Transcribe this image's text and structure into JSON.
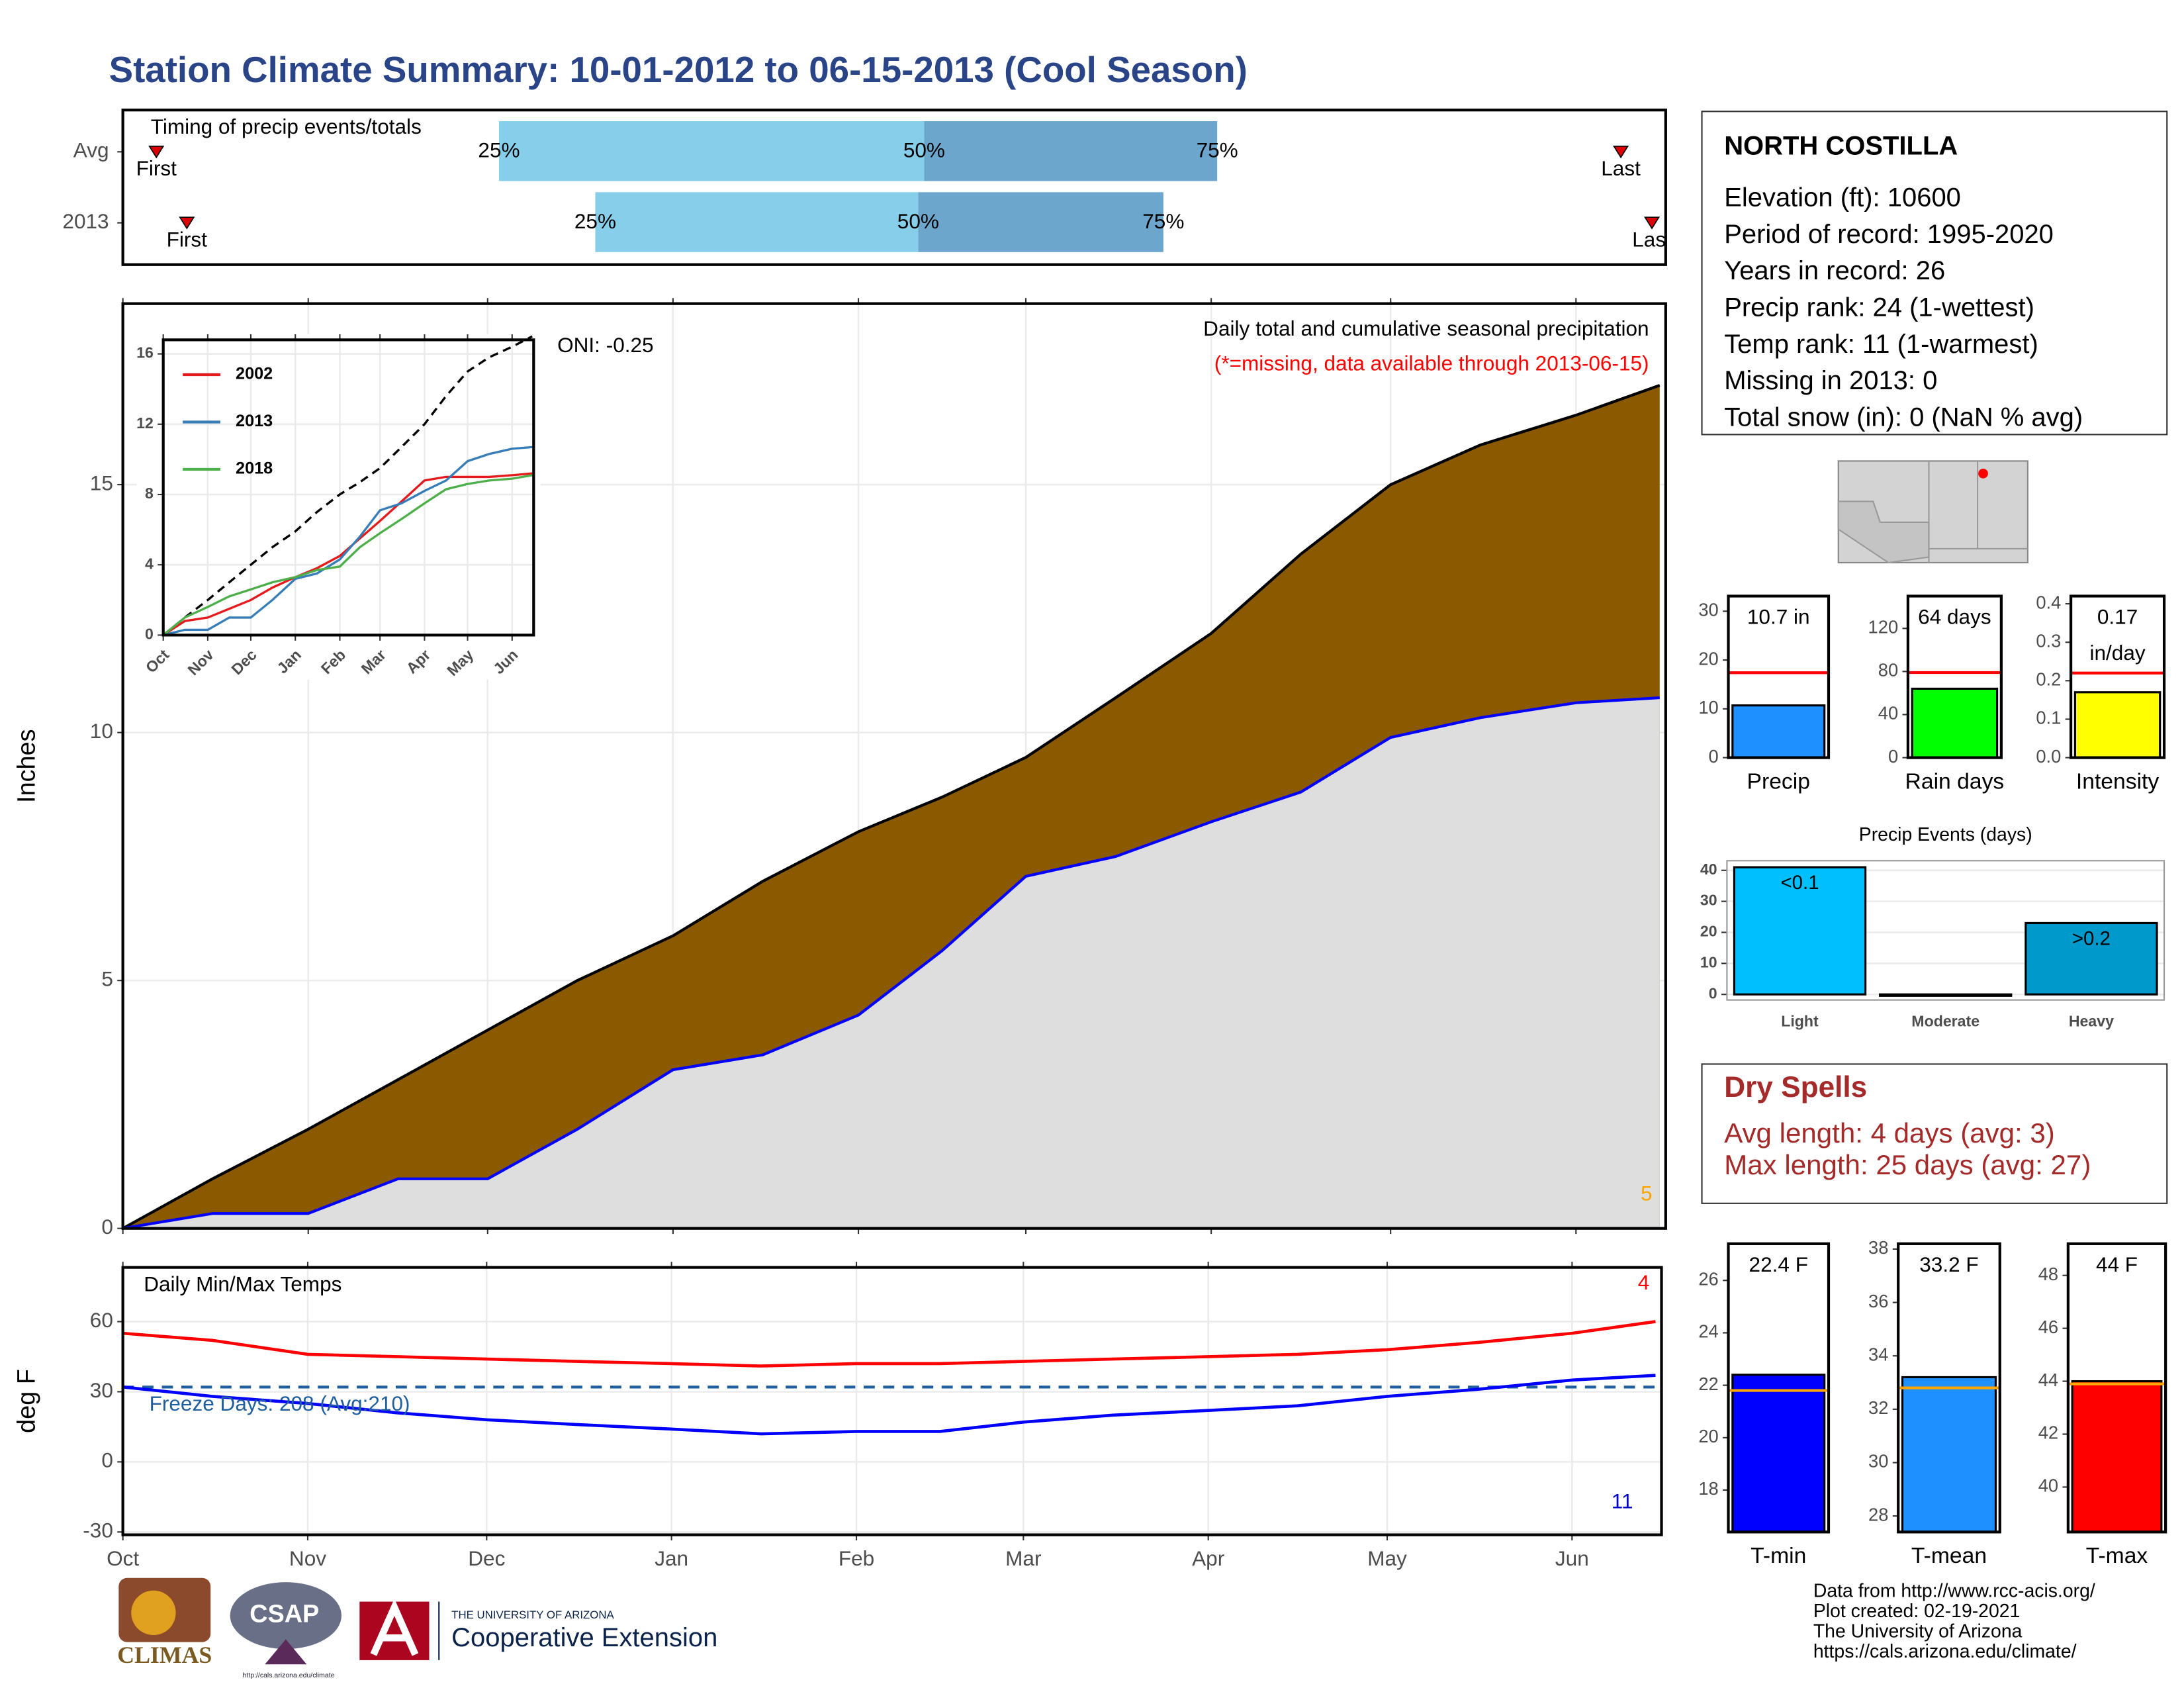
{
  "title": "Station Climate Summary: 10-01-2012 to 06-15-2013 (Cool Season)",
  "chart_data": [
    {
      "type": "timeline",
      "title": "Timing of precip events/totals",
      "categories": [
        "Avg",
        "2013"
      ],
      "xlim": [
        0,
        258
      ],
      "rows": [
        {
          "first": 5.6,
          "q25": 62.9,
          "q50": 134,
          "q75": 183,
          "last": 250.5
        },
        {
          "first": 10.7,
          "q25": 79,
          "q50": 133,
          "q75": 174,
          "last": 255.7
        }
      ],
      "labels": {
        "first": "First",
        "last": "Last",
        "q25": "25%",
        "q50": "50%",
        "q75": "75%"
      },
      "colors": {
        "early": "#87ceeb",
        "late": "#6ca6cd",
        "marker": "#dd0000"
      }
    },
    {
      "type": "area",
      "title": "Daily total and cumulative seasonal precipitation",
      "subtitle": "(*=missing, data available through 2013-06-15)",
      "y_label": "Inches",
      "annotations": [
        {
          "text": "ONI: -0.25",
          "color": "#000000"
        },
        {
          "text": "5",
          "color": "#ffa500"
        }
      ],
      "x": [
        0,
        15,
        31,
        46,
        61,
        76,
        92,
        107,
        123,
        137,
        151,
        166,
        182,
        197,
        212,
        227,
        243,
        257
      ],
      "series": [
        {
          "color": "#8b5a00",
          "edge": "#000000",
          "values": [
            0,
            1.0,
            2.0,
            3.0,
            4.0,
            5.0,
            5.9,
            7.0,
            8.0,
            8.7,
            9.5,
            10.7,
            12.0,
            13.6,
            15.0,
            15.8,
            16.4,
            17.0
          ]
        },
        {
          "color": "#dedede",
          "edge": "#0000ff",
          "values": [
            0,
            0.3,
            0.3,
            1.0,
            1.0,
            2.0,
            3.2,
            3.5,
            4.3,
            5.6,
            7.1,
            7.5,
            8.2,
            8.8,
            9.9,
            10.3,
            10.6,
            10.7
          ]
        }
      ],
      "xlim": [
        0,
        258
      ],
      "xticks": [
        0,
        31,
        61,
        92,
        123,
        151,
        182,
        212,
        243
      ],
      "ylim": [
        0,
        18.65
      ],
      "yticks": [
        0,
        5,
        10,
        15
      ],
      "grid": true
    },
    {
      "type": "line",
      "x": [
        0,
        15,
        31,
        46,
        61,
        76,
        92,
        107,
        123,
        137,
        151,
        166,
        182,
        197,
        212,
        227,
        243,
        257
      ],
      "series": [
        {
          "color": "#000000",
          "dash": true,
          "values": [
            0,
            1.0,
            2.0,
            3.0,
            4.0,
            5.0,
            5.9,
            7.0,
            8.0,
            8.7,
            9.5,
            10.7,
            12.0,
            13.6,
            15.0,
            15.8,
            16.4,
            17.0
          ]
        },
        {
          "name": "2002",
          "color": "#e41a1c",
          "values": [
            0,
            0.8,
            1.0,
            1.5,
            2.0,
            2.7,
            3.3,
            3.8,
            4.5,
            5.5,
            6.5,
            7.6,
            8.8,
            9.0,
            9.0,
            9.0,
            9.1,
            9.2
          ]
        },
        {
          "name": "2013",
          "color": "#377eb8",
          "values": [
            0,
            0.3,
            0.3,
            1.0,
            1.0,
            2.0,
            3.2,
            3.5,
            4.3,
            5.6,
            7.1,
            7.5,
            8.2,
            8.8,
            9.9,
            10.3,
            10.6,
            10.7
          ]
        },
        {
          "name": "2018",
          "color": "#4daf4a",
          "values": [
            0,
            1.0,
            1.6,
            2.2,
            2.6,
            3.0,
            3.3,
            3.7,
            3.9,
            5.0,
            5.8,
            6.6,
            7.5,
            8.3,
            8.6,
            8.8,
            8.9,
            9.1
          ]
        }
      ],
      "xlim": [
        0,
        258
      ],
      "xticks": [
        {
          "value": 0,
          "label": "Oct"
        },
        {
          "value": 31,
          "label": "Nov"
        },
        {
          "value": 61,
          "label": "Dec"
        },
        {
          "value": 92,
          "label": "Jan"
        },
        {
          "value": 123,
          "label": "Feb"
        },
        {
          "value": 151,
          "label": "Mar"
        },
        {
          "value": 182,
          "label": "Apr"
        },
        {
          "value": 212,
          "label": "May"
        },
        {
          "value": 243,
          "label": "Jun"
        }
      ],
      "ylim": [
        0,
        16.8
      ],
      "yticks": [
        0,
        4,
        8,
        12,
        16
      ],
      "grid": true
    },
    {
      "type": "temps",
      "title": "Daily Min/Max Temps",
      "y_label": "deg F",
      "annotations": [
        {
          "text": "Freeze Days: 208 (Avg:210)",
          "color": "#1f5f9f"
        },
        {
          "text": "4",
          "color": "#ff0000"
        },
        {
          "text": "11",
          "color": "#0000cc"
        }
      ],
      "x": [
        0,
        15,
        31,
        46,
        61,
        76,
        92,
        107,
        123,
        137,
        151,
        166,
        182,
        197,
        212,
        227,
        243,
        257
      ],
      "series": [
        {
          "color": "#ff0000",
          "values": [
            55,
            52,
            46,
            45,
            44,
            43,
            42,
            41,
            42,
            42,
            43,
            44,
            45,
            46,
            48,
            51,
            55,
            60
          ]
        },
        {
          "color": "#0000ff",
          "values": [
            32,
            28,
            25,
            21,
            18,
            16,
            14,
            12,
            13,
            13,
            17,
            20,
            22,
            24,
            28,
            31,
            35,
            37
          ]
        }
      ],
      "freeze_line": 32,
      "freeze_color": "#1f5f9f",
      "xlim": [
        0,
        258
      ],
      "xticks": [
        {
          "value": 0,
          "label": "Oct"
        },
        {
          "value": 31,
          "label": "Nov"
        },
        {
          "value": 61,
          "label": "Dec"
        },
        {
          "value": 92,
          "label": "Jan"
        },
        {
          "value": 123,
          "label": "Feb"
        },
        {
          "value": 151,
          "label": "Mar"
        },
        {
          "value": 182,
          "label": "Apr"
        },
        {
          "value": 212,
          "label": "May"
        },
        {
          "value": 243,
          "label": "Jun"
        }
      ],
      "ylim": [
        -31.2,
        83.2
      ],
      "yticks": [
        -30,
        0,
        30,
        60
      ],
      "grid": true
    },
    {
      "type": "gauge",
      "category": "Precip",
      "value": 10.7,
      "value_label": "10.7 in",
      "average": 17.4,
      "color": "#1e90ff",
      "avg_color": "#ff0000",
      "ylim": [
        0,
        33.1
      ],
      "yticks": [
        0,
        10,
        20,
        30
      ]
    },
    {
      "type": "gauge",
      "category": "Rain days",
      "value": 64,
      "value_label": "64 days",
      "average": 79,
      "color": "#00ff00",
      "avg_color": "#ff0000",
      "ylim": [
        0,
        150
      ],
      "yticks": [
        0,
        40,
        80,
        120
      ]
    },
    {
      "type": "gauge",
      "category": "Intensity",
      "value": 0.17,
      "value_label": [
        "0.17",
        "in/day"
      ],
      "average": 0.22,
      "color": "#ffff00",
      "avg_color": "#ff0000",
      "ylim": [
        0,
        0.42
      ],
      "yticks": [
        {
          "value": 0,
          "label": "0.0"
        },
        0.1,
        0.2,
        0.3,
        0.4
      ]
    },
    {
      "type": "bar",
      "title": "Precip Events (days)",
      "categories": [
        "Light",
        "Moderate",
        "Heavy"
      ],
      "values": [
        41,
        0,
        23
      ],
      "value_labels": [
        "<0.1",
        null,
        ">0.2"
      ],
      "colors": [
        "#00bfff",
        "#00bfff",
        "#0099cc"
      ],
      "ylim": [
        -1.8,
        43.1
      ],
      "yticks": [
        0,
        10,
        20,
        30,
        40
      ],
      "grid": true
    },
    {
      "type": "gauge",
      "category": "T-min",
      "value": 22.4,
      "value_label": "22.4 F",
      "average": 21.8,
      "color": "#0000ff",
      "avg_color": "#ffa500",
      "ylim": [
        16.4,
        27.4
      ],
      "yticks": [
        18,
        20,
        22,
        24,
        26
      ]
    },
    {
      "type": "gauge",
      "category": "T-mean",
      "value": 33.2,
      "value_label": "33.2 F",
      "average": 32.8,
      "color": "#1e90ff",
      "avg_color": "#ffa500",
      "ylim": [
        27.4,
        38.2
      ],
      "yticks": [
        28,
        30,
        32,
        34,
        36,
        38
      ]
    },
    {
      "type": "gauge",
      "category": "T-max",
      "value": 44,
      "value_label": "44 F",
      "average": 43.9,
      "color": "#ff0000",
      "avg_color": "#ffa500",
      "ylim": [
        38.3,
        49.2
      ],
      "yticks": [
        40,
        42,
        44,
        46,
        48
      ]
    }
  ],
  "station": {
    "name": "NORTH COSTILLA",
    "lines": [
      "Elevation (ft): 10600",
      "Period of record: 1995-2020",
      "Years in record: 26",
      "Precip rank: 24 (1-wettest)",
      "Temp rank: 11 (1-warmest)",
      "Missing in 2013: 0",
      "Total snow (in): 0 (NaN % avg)"
    ]
  },
  "dry_spells": {
    "title": "Dry Spells",
    "lines": [
      "Avg length: 4 days (avg: 3)",
      "Max length: 25 days (avg: 27)"
    ]
  },
  "footer": [
    "Data from http://www.rcc-acis.org/",
    "Plot created: 02-19-2021",
    "The University of Arizona",
    "https://cals.arizona.edu/climate/"
  ],
  "logos": {
    "climas": "CLIMAS",
    "csap": "CSAP",
    "csap_url": "http://cals.arizona.edu/climate",
    "ua_small": "THE UNIVERSITY OF ARIZONA",
    "ua_big": "Cooperative Extension"
  }
}
